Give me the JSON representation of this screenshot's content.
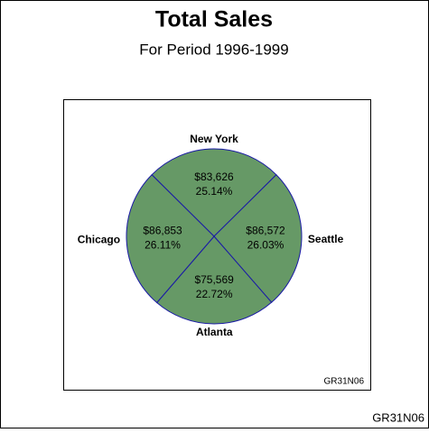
{
  "chart_data": {
    "type": "pie",
    "title": "Total Sales",
    "subtitle": "For Period 1996-1999",
    "categories": [
      "New York",
      "Seattle",
      "Atlanta",
      "Chicago"
    ],
    "values": [
      83626,
      86572,
      75569,
      86853
    ],
    "value_labels": [
      "$83,626",
      "$86,572",
      "$75,569",
      "$86,853"
    ],
    "percents": [
      25.14,
      26.03,
      22.72,
      26.11
    ],
    "percent_labels": [
      "25.14%",
      "26.03%",
      "22.72%",
      "26.11%"
    ],
    "color": "#669966",
    "edge_color": "#1a1aa6",
    "inner_note": "GR31N06",
    "footnote": "GR31N06"
  }
}
